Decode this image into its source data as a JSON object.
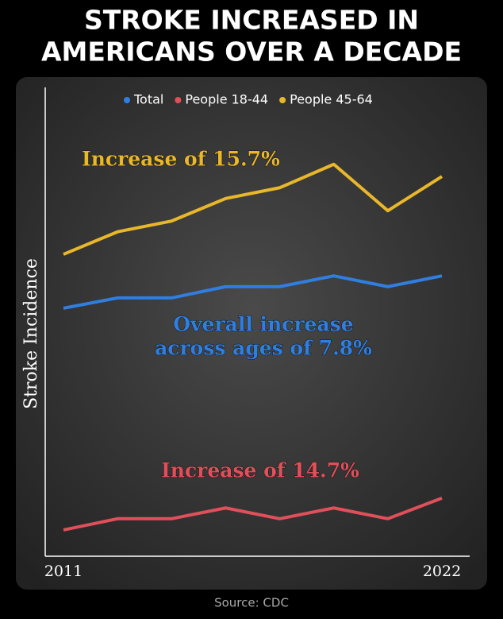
{
  "chart_data": {
    "type": "line",
    "title": [
      "STROKE INCREASED IN",
      "AMERICANS OVER A DECADE"
    ],
    "y_label": "Stroke Incidence",
    "categories": [
      "2011",
      null,
      null,
      null,
      null,
      null,
      null,
      "2022"
    ],
    "series": [
      {
        "name": "Total",
        "color": "#2f7ee0",
        "values": [
          52.9,
          55.1,
          55.1,
          57.5,
          57.5,
          59.8,
          57.5,
          59.8
        ]
      },
      {
        "name": "People 18-44",
        "color": "#e0505a",
        "values": [
          5.6,
          8.0,
          8.0,
          10.3,
          8.0,
          10.3,
          8.0,
          12.4
        ]
      },
      {
        "name": "People 45-64",
        "color": "#e8b72a",
        "values": [
          64.4,
          69.2,
          71.5,
          76.3,
          78.6,
          83.6,
          73.7,
          81.0
        ]
      }
    ],
    "ylim": [
      0,
      100
    ],
    "annotations": [
      {
        "lines": [
          "Increase of 15.7%"
        ],
        "color": "#e8b72a"
      },
      {
        "lines": [
          "Overall increase",
          "across ages of 7.8%"
        ],
        "color": "#2f7ee0"
      },
      {
        "lines": [
          "Increase of 14.7%"
        ],
        "color": "#e0505a"
      }
    ],
    "source": "Source: CDC"
  }
}
